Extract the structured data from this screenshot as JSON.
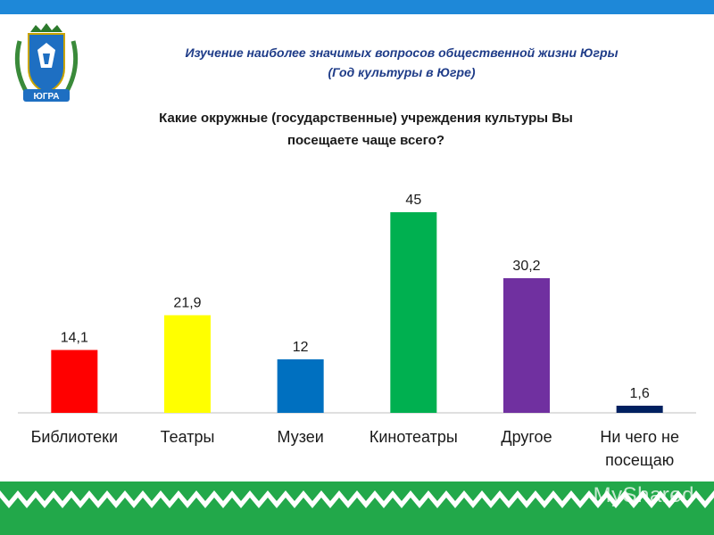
{
  "header": {
    "title_line1": "Изучение наиболее значимых вопросов общественной жизни Югры",
    "title_line2": "(Год культуры  в Югре)"
  },
  "emblem": {
    "label": "ЮГРА",
    "icon": "coat-of-arms-icon"
  },
  "question": {
    "line1": "Какие окружные (государственные) учреждения культуры Вы",
    "line2": "посещаете чаще всего?"
  },
  "watermark": "MyShared",
  "colors": {
    "top_bar": "#1e88d8",
    "ornament": "#22a84a",
    "title": "#1f3c88"
  },
  "chart_data": {
    "type": "bar",
    "title": "",
    "xlabel": "",
    "ylabel": "",
    "ylim": [
      0,
      50
    ],
    "grid": false,
    "legend": "none",
    "categories": [
      [
        "Библиотеки"
      ],
      [
        "Театры"
      ],
      [
        "Музеи"
      ],
      [
        "Кинотеатры"
      ],
      [
        "Другое"
      ],
      [
        "Ни чего не",
        "посещаю"
      ]
    ],
    "values": [
      14.1,
      21.9,
      12,
      45,
      30.2,
      1.6
    ],
    "value_labels": [
      "14,1",
      "21,9",
      "12",
      "45",
      "30,2",
      "1,6"
    ],
    "bar_colors": [
      "#ff0000",
      "#ffff00",
      "#0070c0",
      "#00b050",
      "#7030a0",
      "#002060"
    ]
  }
}
